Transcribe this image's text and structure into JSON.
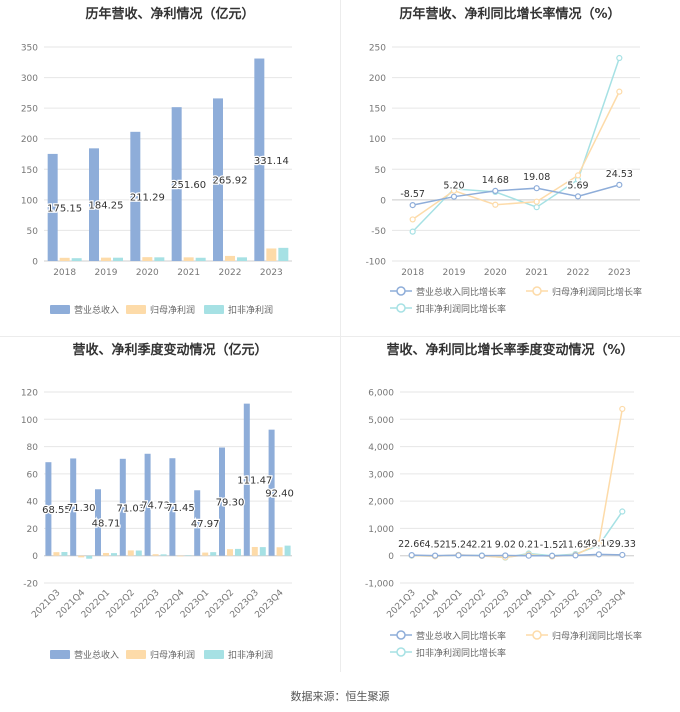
{
  "source": "数据来源：恒生聚源",
  "colors": {
    "revenue": "#8eadd9",
    "net_profit": "#fddba9",
    "deducted_profit": "#a6e1e4",
    "grid": "#e6e6e6",
    "axis_text": "#777777"
  },
  "chart_data": [
    {
      "id": "annual_amounts",
      "type": "bar",
      "title": "历年营收、净利情况（亿元）",
      "categories": [
        "2018",
        "2019",
        "2020",
        "2021",
        "2022",
        "2023"
      ],
      "ylim": [
        0,
        350
      ],
      "yticks": [
        0,
        50,
        100,
        150,
        200,
        250,
        300,
        350
      ],
      "ytick_labels": [
        "0",
        "50",
        "100",
        "150",
        "200",
        "250",
        "300",
        "350"
      ],
      "legend_position": "bottom",
      "series": [
        {
          "name": "营业总收入",
          "color_key": "revenue",
          "values": [
            175.15,
            184.25,
            211.29,
            251.6,
            265.92,
            331.14
          ],
          "labels": [
            "175.15",
            "184.25",
            "211.29",
            "251.60",
            "265.92",
            "331.14"
          ]
        },
        {
          "name": "归母净利润",
          "color_key": "net_profit",
          "values": [
            5.2,
            5.5,
            6.3,
            6.0,
            8.3,
            20.5
          ]
        },
        {
          "name": "扣非净利润",
          "color_key": "deducted_profit",
          "values": [
            4.6,
            5.4,
            6.0,
            5.3,
            6.0,
            21.5
          ]
        }
      ]
    },
    {
      "id": "annual_growth",
      "type": "line",
      "title": "历年营收、净利同比增长率情况（%）",
      "categories": [
        "2018",
        "2019",
        "2020",
        "2021",
        "2022",
        "2023"
      ],
      "ylim": [
        -100,
        250
      ],
      "yticks": [
        -100,
        -50,
        0,
        50,
        100,
        150,
        200,
        250
      ],
      "ytick_labels": [
        "-100",
        "-50",
        "0",
        "50",
        "100",
        "150",
        "200",
        "250"
      ],
      "legend_position": "bottom",
      "series": [
        {
          "name": "营业总收入同比增长率",
          "color_key": "revenue",
          "values": [
            -8.57,
            5.2,
            14.68,
            19.08,
            5.69,
            24.53
          ],
          "labels": [
            "-8.57",
            "5.20",
            "14.68",
            "19.08",
            "5.69",
            "24.53"
          ]
        },
        {
          "name": "归母净利润同比增长率",
          "color_key": "net_profit",
          "values": [
            -32,
            15,
            -8,
            -3,
            40,
            177
          ]
        },
        {
          "name": "扣非净利润同比增长率",
          "color_key": "deducted_profit",
          "values": [
            -52,
            18,
            13,
            -12,
            33,
            232
          ]
        }
      ]
    },
    {
      "id": "quarterly_amounts",
      "type": "bar",
      "title": "营收、净利季度变动情况（亿元）",
      "categories": [
        "2021Q3",
        "2021Q4",
        "2022Q1",
        "2022Q2",
        "2022Q3",
        "2022Q4",
        "2023Q1",
        "2023Q2",
        "2023Q3",
        "2023Q4"
      ],
      "ylim": [
        -20,
        120
      ],
      "yticks": [
        -20,
        0,
        20,
        40,
        60,
        80,
        100,
        120
      ],
      "ytick_labels": [
        "-20",
        "0",
        "20",
        "40",
        "60",
        "80",
        "100",
        "120"
      ],
      "legend_position": "bottom",
      "series": [
        {
          "name": "营业总收入",
          "color_key": "revenue",
          "values": [
            68.55,
            71.3,
            48.71,
            71.03,
            74.73,
            71.45,
            47.97,
            79.3,
            111.47,
            92.4
          ],
          "labels": [
            "68.55",
            "71.30",
            "48.71",
            "71.03",
            "74.73",
            "71.45",
            "47.97",
            "79.30",
            "111.47",
            "92.40"
          ]
        },
        {
          "name": "归母净利润",
          "color_key": "net_profit",
          "values": [
            2.6,
            -1.2,
            2.0,
            3.9,
            1.1,
            -0.5,
            2.3,
            4.8,
            6.4,
            6.2
          ]
        },
        {
          "name": "扣非净利润",
          "color_key": "deducted_profit",
          "values": [
            2.7,
            -2.2,
            1.9,
            3.8,
            1.0,
            0.3,
            2.6,
            5.0,
            6.3,
            7.4
          ]
        }
      ]
    },
    {
      "id": "quarterly_growth",
      "type": "line",
      "title": "营收、净利同比增长率季度变动情况（%）",
      "categories": [
        "2021Q3",
        "2021Q4",
        "2022Q1",
        "2022Q2",
        "2022Q3",
        "2022Q4",
        "2023Q1",
        "2023Q2",
        "2023Q3",
        "2023Q4"
      ],
      "ylim": [
        -1000,
        6000
      ],
      "yticks": [
        -1000,
        0,
        1000,
        2000,
        3000,
        4000,
        5000,
        6000
      ],
      "ytick_labels": [
        "-1,000",
        "0",
        "1,000",
        "2,000",
        "3,000",
        "4,000",
        "5,000",
        "6,000"
      ],
      "legend_position": "bottom",
      "series": [
        {
          "name": "营业总收入同比增长率",
          "color_key": "revenue",
          "values": [
            22.66,
            4.52,
            15.24,
            2.21,
            9.02,
            0.21,
            -1.52,
            11.65,
            49.16,
            29.33
          ],
          "labels": [
            "22.66",
            "4.52",
            "15.24",
            "2.21",
            "9.02",
            "0.21",
            "-1.52",
            "11.65",
            "49.16",
            "29.33"
          ]
        },
        {
          "name": "归母净利润同比增长率",
          "color_key": "net_profit",
          "values": [
            10,
            -20,
            30,
            -10,
            -60,
            40,
            -30,
            30,
            450,
            5380
          ]
        },
        {
          "name": "扣非净利润同比增长率",
          "color_key": "deducted_profit",
          "values": [
            0,
            -10,
            20,
            10,
            -70,
            80,
            0,
            60,
            380,
            1620
          ]
        }
      ]
    }
  ]
}
